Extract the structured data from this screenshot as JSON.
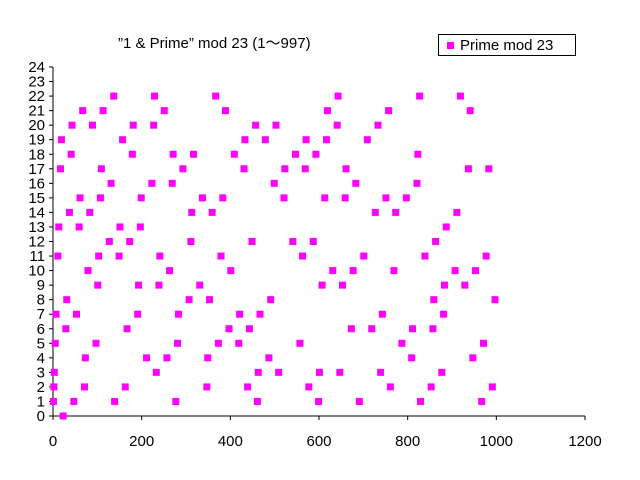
{
  "chart_data": {
    "type": "scatter",
    "title": "”1 & Prime” mod 23 (1〜997)",
    "xlabel": "",
    "ylabel": "",
    "xlim": [
      0,
      1200
    ],
    "ylim": [
      0,
      24
    ],
    "x_ticks": [
      "0",
      "200",
      "400",
      "600",
      "800",
      "1000",
      "1200"
    ],
    "y_ticks": [
      "0",
      "1",
      "2",
      "3",
      "4",
      "5",
      "6",
      "7",
      "8",
      "9",
      "10",
      "11",
      "12",
      "13",
      "14",
      "15",
      "16",
      "17",
      "18",
      "19",
      "20",
      "21",
      "22",
      "23",
      "24"
    ],
    "grid": false,
    "legend_position": "top-right",
    "series": [
      {
        "name": "Prime mod 23",
        "color": "#FF00FF",
        "points": [
          [
            1,
            1
          ],
          [
            2,
            2
          ],
          [
            3,
            3
          ],
          [
            5,
            5
          ],
          [
            7,
            7
          ],
          [
            11,
            11
          ],
          [
            13,
            13
          ],
          [
            17,
            17
          ],
          [
            19,
            19
          ],
          [
            23,
            0
          ],
          [
            29,
            6
          ],
          [
            31,
            8
          ],
          [
            37,
            14
          ],
          [
            41,
            18
          ],
          [
            43,
            20
          ],
          [
            47,
            1
          ],
          [
            53,
            7
          ],
          [
            59,
            13
          ],
          [
            61,
            15
          ],
          [
            67,
            21
          ],
          [
            71,
            2
          ],
          [
            73,
            4
          ],
          [
            79,
            10
          ],
          [
            83,
            14
          ],
          [
            89,
            20
          ],
          [
            97,
            5
          ],
          [
            101,
            9
          ],
          [
            103,
            11
          ],
          [
            107,
            15
          ],
          [
            109,
            17
          ],
          [
            113,
            21
          ],
          [
            127,
            12
          ],
          [
            131,
            16
          ],
          [
            137,
            22
          ],
          [
            139,
            1
          ],
          [
            149,
            11
          ],
          [
            151,
            13
          ],
          [
            157,
            19
          ],
          [
            163,
            2
          ],
          [
            167,
            6
          ],
          [
            173,
            12
          ],
          [
            179,
            18
          ],
          [
            181,
            20
          ],
          [
            191,
            7
          ],
          [
            193,
            9
          ],
          [
            197,
            13
          ],
          [
            199,
            15
          ],
          [
            211,
            4
          ],
          [
            223,
            16
          ],
          [
            227,
            20
          ],
          [
            229,
            22
          ],
          [
            233,
            3
          ],
          [
            239,
            9
          ],
          [
            241,
            11
          ],
          [
            251,
            21
          ],
          [
            257,
            4
          ],
          [
            263,
            10
          ],
          [
            269,
            16
          ],
          [
            271,
            18
          ],
          [
            277,
            1
          ],
          [
            281,
            5
          ],
          [
            283,
            7
          ],
          [
            293,
            17
          ],
          [
            307,
            8
          ],
          [
            311,
            12
          ],
          [
            313,
            14
          ],
          [
            317,
            18
          ],
          [
            331,
            9
          ],
          [
            337,
            15
          ],
          [
            347,
            2
          ],
          [
            349,
            4
          ],
          [
            353,
            8
          ],
          [
            359,
            14
          ],
          [
            367,
            22
          ],
          [
            373,
            5
          ],
          [
            379,
            11
          ],
          [
            383,
            15
          ],
          [
            389,
            21
          ],
          [
            397,
            6
          ],
          [
            401,
            10
          ],
          [
            409,
            18
          ],
          [
            419,
            5
          ],
          [
            421,
            7
          ],
          [
            431,
            17
          ],
          [
            433,
            19
          ],
          [
            439,
            2
          ],
          [
            443,
            6
          ],
          [
            449,
            12
          ],
          [
            457,
            20
          ],
          [
            461,
            1
          ],
          [
            463,
            3
          ],
          [
            467,
            7
          ],
          [
            479,
            19
          ],
          [
            487,
            4
          ],
          [
            491,
            8
          ],
          [
            499,
            16
          ],
          [
            503,
            20
          ],
          [
            509,
            3
          ],
          [
            521,
            15
          ],
          [
            523,
            17
          ],
          [
            541,
            12
          ],
          [
            547,
            18
          ],
          [
            557,
            5
          ],
          [
            563,
            11
          ],
          [
            569,
            17
          ],
          [
            571,
            19
          ],
          [
            577,
            2
          ],
          [
            587,
            12
          ],
          [
            593,
            18
          ],
          [
            599,
            1
          ],
          [
            601,
            3
          ],
          [
            607,
            9
          ],
          [
            613,
            15
          ],
          [
            617,
            19
          ],
          [
            619,
            21
          ],
          [
            631,
            10
          ],
          [
            641,
            20
          ],
          [
            643,
            22
          ],
          [
            647,
            3
          ],
          [
            653,
            9
          ],
          [
            659,
            15
          ],
          [
            661,
            17
          ],
          [
            673,
            6
          ],
          [
            677,
            10
          ],
          [
            683,
            16
          ],
          [
            691,
            1
          ],
          [
            701,
            11
          ],
          [
            709,
            19
          ],
          [
            719,
            6
          ],
          [
            727,
            14
          ],
          [
            733,
            20
          ],
          [
            739,
            3
          ],
          [
            743,
            7
          ],
          [
            751,
            15
          ],
          [
            757,
            21
          ],
          [
            761,
            2
          ],
          [
            769,
            10
          ],
          [
            773,
            14
          ],
          [
            787,
            5
          ],
          [
            797,
            15
          ],
          [
            809,
            4
          ],
          [
            811,
            6
          ],
          [
            821,
            16
          ],
          [
            823,
            18
          ],
          [
            827,
            22
          ],
          [
            829,
            1
          ],
          [
            839,
            11
          ],
          [
            853,
            2
          ],
          [
            857,
            6
          ],
          [
            859,
            8
          ],
          [
            863,
            12
          ],
          [
            877,
            3
          ],
          [
            881,
            7
          ],
          [
            883,
            9
          ],
          [
            887,
            13
          ],
          [
            907,
            10
          ],
          [
            911,
            14
          ],
          [
            919,
            22
          ],
          [
            929,
            9
          ],
          [
            937,
            17
          ],
          [
            941,
            21
          ],
          [
            947,
            4
          ],
          [
            953,
            10
          ],
          [
            967,
            1
          ],
          [
            971,
            5
          ],
          [
            977,
            11
          ],
          [
            983,
            17
          ],
          [
            991,
            2
          ],
          [
            997,
            8
          ]
        ]
      }
    ]
  },
  "title_text": "”1 & Prime” mod 23 (1〜997)",
  "legend": {
    "label": "Prime mod 23",
    "color": "#FF00FF"
  }
}
